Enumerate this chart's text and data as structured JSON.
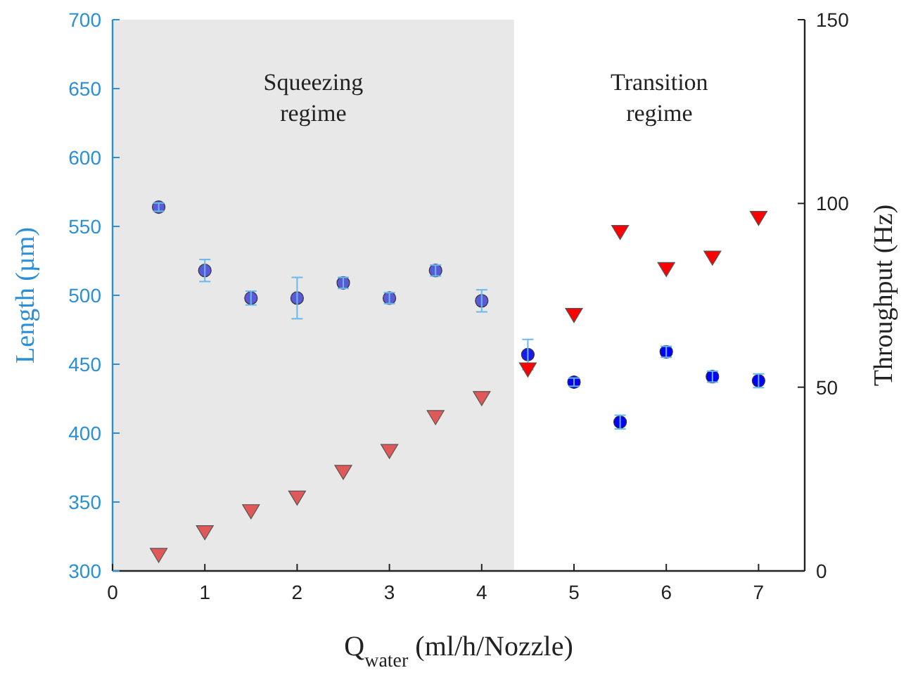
{
  "chart_data": {
    "type": "scatter",
    "xlabel": "Q$_{water}$ (ml/h/Nozzle)",
    "ylabel": "Length (µm)",
    "y2label": "Throughput (Hz)",
    "x": [
      0.5,
      1,
      1.5,
      2,
      2.5,
      3,
      3.5,
      4,
      4.5,
      5,
      5.5,
      6,
      6.5,
      7
    ],
    "series": [
      {
        "type": "scatter",
        "marker": "circle",
        "colors": [
          "#5a5ad8",
          "#5a5ad8",
          "#5a5ad8",
          "#5a5ad8",
          "#5a5ad8",
          "#5a5ad8",
          "#5a5ad8",
          "#5a5ad8",
          "#1a1aef",
          "#0000ff",
          "#0000ff",
          "#0000ff",
          "#0000ff",
          "#0000ff"
        ],
        "values": [
          564,
          518,
          498,
          498,
          509,
          498,
          518,
          496,
          457,
          437,
          408,
          459,
          441,
          438
        ],
        "errors": [
          3,
          8,
          5,
          15,
          4,
          4,
          4,
          8,
          11,
          3,
          5,
          4,
          4,
          5
        ]
      },
      {
        "marker": "triangle",
        "axis": "y2",
        "colors": [
          "#e05858",
          "#e05858",
          "#e05858",
          "#e05858",
          "#e05858",
          "#e05858",
          "#e05858",
          "#e05858",
          "#ff0000",
          "#ff0000",
          "#ff0000",
          "#ff0000",
          "#ff0000",
          "#ff0000"
        ],
        "values": [
          4.6,
          10.8,
          16.5,
          20.2,
          27.2,
          32.9,
          42.1,
          47.3,
          55.1,
          69.9,
          92.5,
          82.4,
          85.5,
          96.3
        ]
      }
    ],
    "xlim": [
      0,
      7.5
    ],
    "xticks": [
      0,
      1,
      2,
      3,
      4,
      5,
      6,
      7
    ],
    "ylim": [
      300,
      700
    ],
    "yticks": [
      300,
      350,
      400,
      450,
      500,
      550,
      600,
      650,
      700
    ],
    "y2lim": [
      0,
      150
    ],
    "y2ticks": [
      0,
      50,
      100,
      150
    ],
    "bands": [
      {
        "axis": "x",
        "from": 0,
        "to": 4.35,
        "color": "#e8e8e8"
      }
    ],
    "annotations": [
      "Squeezing\nregime",
      "Transition\nregime"
    ],
    "grid": false
  }
}
